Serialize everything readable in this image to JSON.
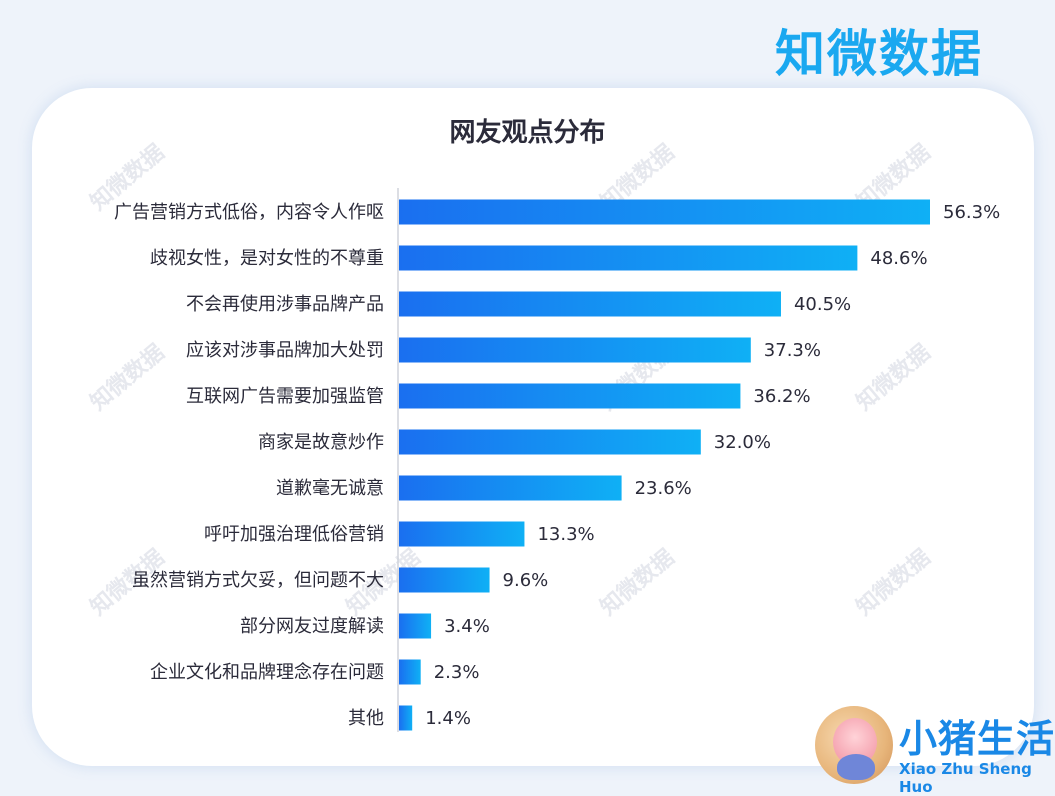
{
  "brand": "知微数据",
  "watermark": "知微数据",
  "logo": {
    "text": "小猪生活",
    "sub": "Xiao Zhu Sheng Huo"
  },
  "chart_data": {
    "type": "bar",
    "orientation": "horizontal",
    "title": "网友观点分布",
    "categories": [
      "广告营销方式低俗，内容令人作呕",
      "歧视女性，是对女性的不尊重",
      "不会再使用涉事品牌产品",
      "应该对涉事品牌加大处罚",
      "互联网广告需要加强监管",
      "商家是故意炒作",
      "道歉毫无诚意",
      "呼吁加强治理低俗营销",
      "虽然营销方式欠妥，但问题不大",
      "部分网友过度解读",
      "企业文化和品牌理念存在问题",
      "其他"
    ],
    "values": [
      56.3,
      48.6,
      40.5,
      37.3,
      36.2,
      32.0,
      23.6,
      13.3,
      9.6,
      3.4,
      2.3,
      1.4
    ],
    "value_labels": [
      "56.3%",
      "48.6%",
      "40.5%",
      "37.3%",
      "36.2%",
      "32.0%",
      "23.6%",
      "13.3%",
      "9.6%",
      "3.4%",
      "2.3%",
      "1.4%"
    ],
    "grid": false,
    "bar_gradient": [
      "#1a6ff0",
      "#0fb0f5"
    ]
  }
}
